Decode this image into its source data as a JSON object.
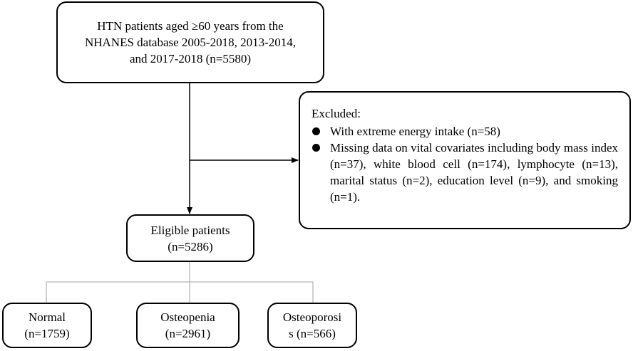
{
  "source": {
    "lines": [
      "HTN patients aged ≥60 years from the",
      "NHANES database 2005-2018, 2013-2014,",
      "and 2017-2018 (n=5580)"
    ]
  },
  "excluded": {
    "title": "Excluded:",
    "items": [
      "With extreme energy intake (n=58)",
      "Missing data on vital covariates including body mass index (n=37), white blood cell (n=174), lymphocyte (n=13), marital status (n=2), education level (n=9), and smoking (n=1)."
    ]
  },
  "eligible": {
    "lines": [
      "Eligible patients",
      "(n=5286)"
    ]
  },
  "groups": [
    {
      "lines": [
        "Normal",
        "(n=1759)"
      ]
    },
    {
      "lines": [
        "Osteopenia",
        "(n=2961)"
      ]
    },
    {
      "lines": [
        "Osteoporosi",
        "s (n=566)"
      ]
    }
  ]
}
